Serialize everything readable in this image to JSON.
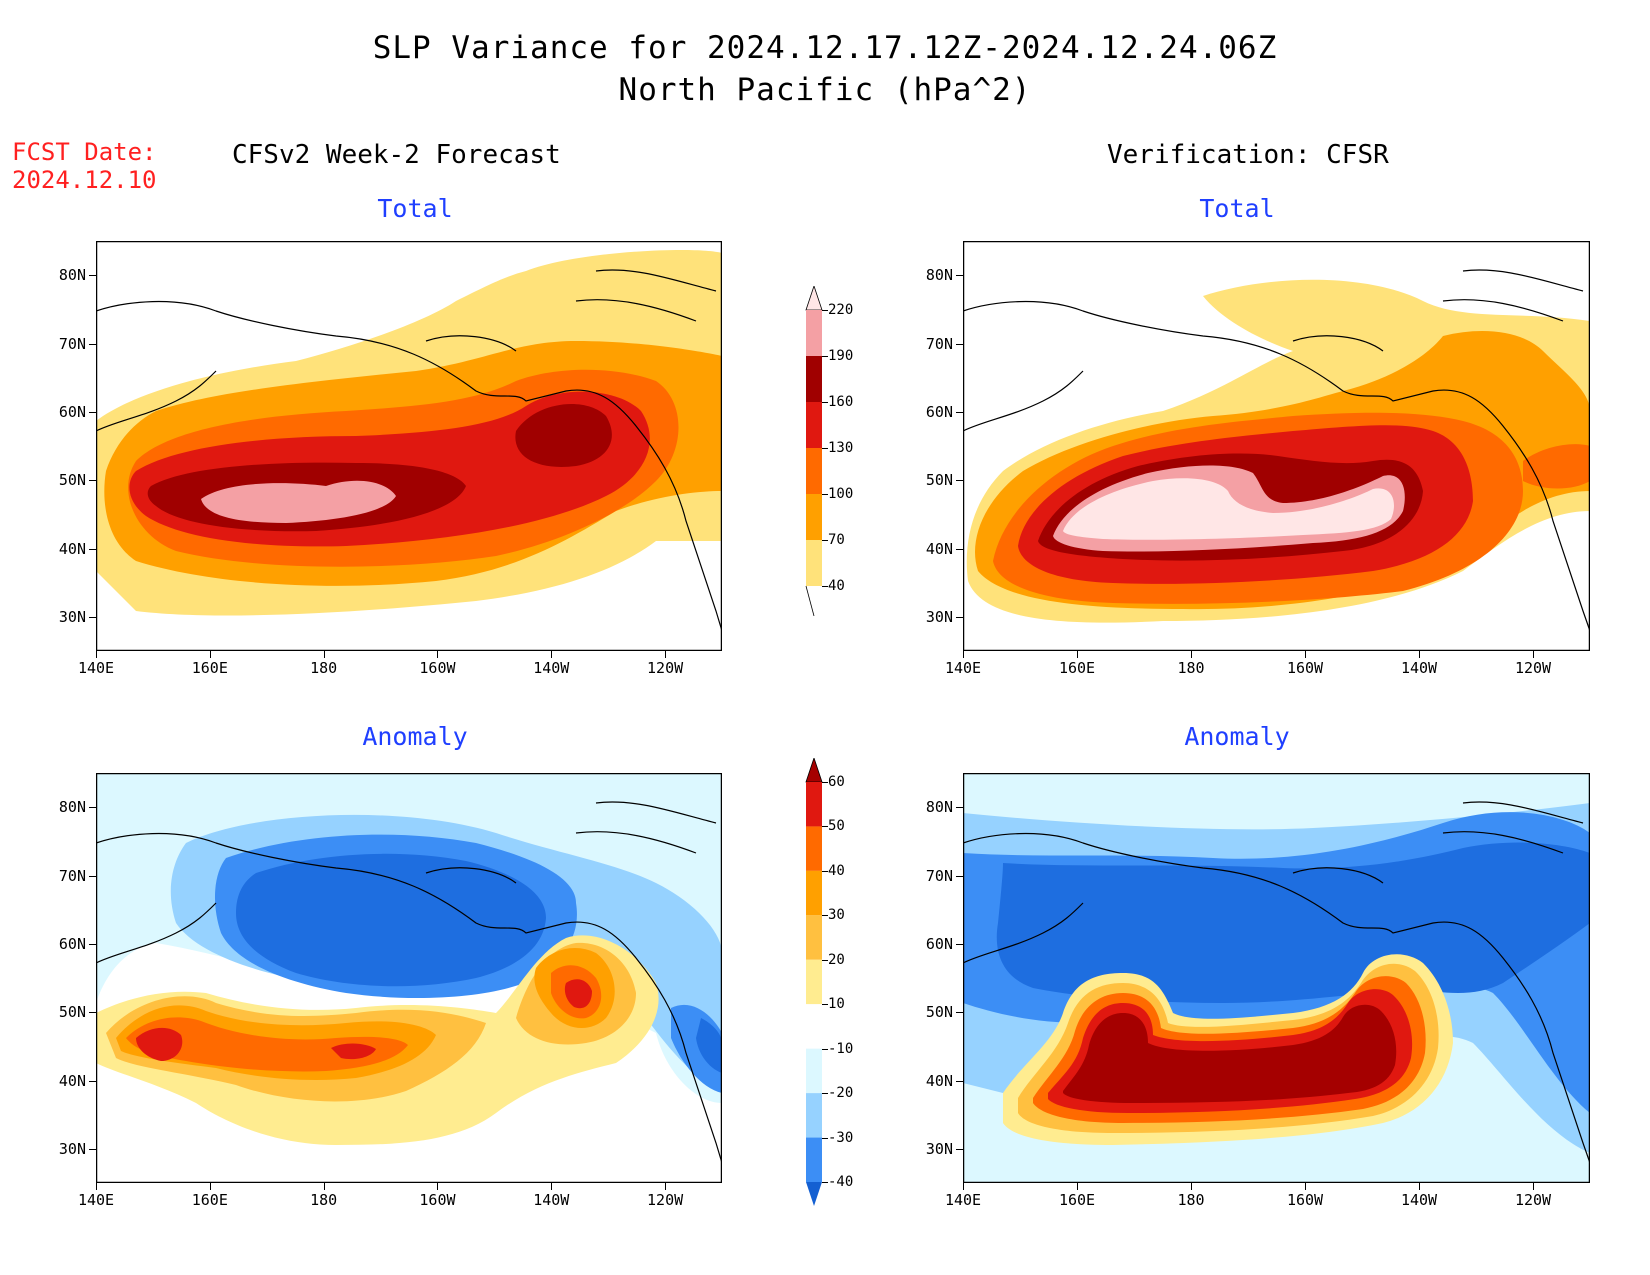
{
  "header": {
    "title_line1": "SLP Variance for 2024.12.17.12Z-2024.12.24.06Z",
    "title_line2": "North Pacific (hPa^2)",
    "fcst_label": "FCST Date:",
    "fcst_date": "2024.12.10"
  },
  "columns": {
    "left": "CFSv2 Week-2 Forecast",
    "right": "Verification: CFSR"
  },
  "panels": [
    {
      "id": "fcst-total",
      "subtitle": "Total"
    },
    {
      "id": "verif-total",
      "subtitle": "Total"
    },
    {
      "id": "fcst-anom",
      "subtitle": "Anomaly"
    },
    {
      "id": "verif-anom",
      "subtitle": "Anomaly"
    }
  ],
  "axes": {
    "lat_labels": [
      "80N",
      "70N",
      "60N",
      "50N",
      "40N",
      "30N"
    ],
    "lon_labels": [
      "140E",
      "160E",
      "180",
      "160W",
      "140W",
      "120W"
    ],
    "lat_range": [
      25,
      85
    ],
    "lon_range": [
      140,
      250
    ]
  },
  "colorbars": {
    "total": {
      "labels": [
        "220",
        "190",
        "160",
        "130",
        "100",
        "70",
        "40"
      ],
      "colors": [
        "#ffe6e6",
        "#f4a0a4",
        "#a00000",
        "#e01810",
        "#ff6a00",
        "#ffa000",
        "#ffe27a"
      ]
    },
    "anomaly": {
      "labels": [
        "60",
        "50",
        "40",
        "30",
        "20",
        "10",
        "-10",
        "-20",
        "-30",
        "-40"
      ],
      "colors": [
        "#a50000",
        "#e01810",
        "#ff6a00",
        "#ffa000",
        "#ffc040",
        "#ffec90",
        "#ffffff",
        "#dcf8ff",
        "#96d2ff",
        "#3c8ef5",
        "#1460d2"
      ]
    }
  },
  "colors": {
    "title_text": "#000000",
    "fcst_text": "#ff2020",
    "subtitle_text": "#1f3fff"
  }
}
